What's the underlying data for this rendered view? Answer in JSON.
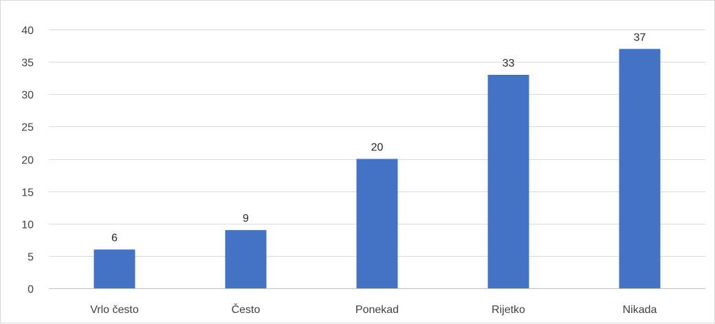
{
  "chart_data": {
    "type": "bar",
    "title": "",
    "xlabel": "",
    "ylabel": "",
    "categories": [
      "Vrlo često",
      "Često",
      "Ponekad",
      "Rijetko",
      "Nikada"
    ],
    "values": [
      6,
      9,
      20,
      33,
      37
    ],
    "ylim": [
      0,
      40
    ],
    "yticks": [
      "0",
      "5",
      "10",
      "15",
      "20",
      "25",
      "30",
      "35",
      "40"
    ],
    "data_labels": [
      "6",
      "9",
      "20",
      "33",
      "37"
    ],
    "grid": true,
    "legend": "none",
    "colors": {
      "bar": "#4472C4",
      "grid": "#D9D9D9",
      "text": "#404040",
      "border": "#D9D9D9"
    }
  }
}
